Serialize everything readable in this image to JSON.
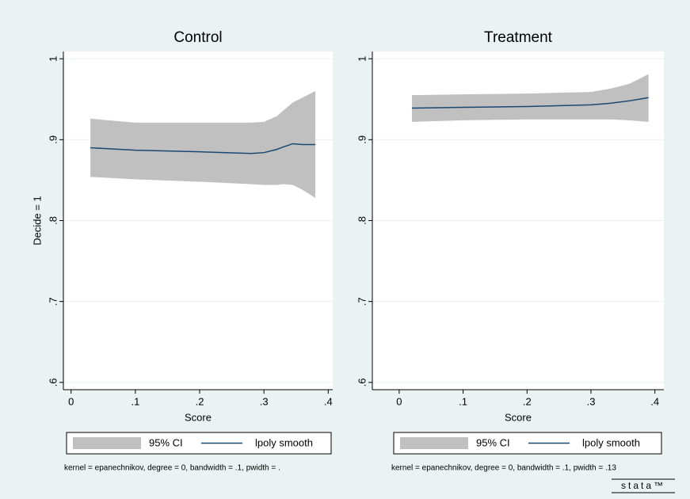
{
  "chart_data": [
    {
      "type": "line",
      "title": "Control",
      "xlabel": "Score",
      "ylabel": "Decide = 1",
      "note": "kernel = epanechnikov, degree = 0, bandwidth = .1, pwidth = .",
      "x": [
        0.03,
        0.1,
        0.2,
        0.28,
        0.3,
        0.32,
        0.33,
        0.345,
        0.36,
        0.38
      ],
      "series": [
        {
          "name": "95% CI",
          "color": "#c0c0c0",
          "upper": [
            0.926,
            0.921,
            0.921,
            0.921,
            0.922,
            0.929,
            0.936,
            0.946,
            0.952,
            0.96
          ],
          "lower": [
            0.854,
            0.851,
            0.848,
            0.845,
            0.844,
            0.844,
            0.845,
            0.844,
            0.838,
            0.828
          ]
        },
        {
          "name": "lpoly smooth",
          "color": "#1a476f",
          "values": [
            0.89,
            0.887,
            0.885,
            0.883,
            0.884,
            0.888,
            0.891,
            0.895,
            0.894,
            0.894
          ]
        }
      ],
      "xlim": [
        -0.012,
        0.407
      ],
      "ylim": [
        0.591,
        1.009
      ],
      "grid": true,
      "xticks": [
        {
          "value": 0,
          "label": "0"
        },
        {
          "value": 0.1,
          "label": ".1"
        },
        {
          "value": 0.2,
          "label": ".2"
        },
        {
          "value": 0.3,
          "label": ".3"
        },
        {
          "value": 0.4,
          "label": ".4"
        }
      ],
      "yticks": [
        {
          "value": 0.6,
          "label": ".6"
        },
        {
          "value": 0.7,
          "label": ".7"
        },
        {
          "value": 0.8,
          "label": ".8"
        },
        {
          "value": 0.9,
          "label": ".9"
        },
        {
          "value": 1,
          "label": "1"
        }
      ]
    },
    {
      "type": "line",
      "title": "Treatment",
      "xlabel": "Score",
      "note": "kernel = epanechnikov, degree = 0, bandwidth = .1, pwidth = .13",
      "x": [
        0.02,
        0.1,
        0.2,
        0.3,
        0.33,
        0.36,
        0.39
      ],
      "series": [
        {
          "name": "95% CI",
          "color": "#c0c0c0",
          "upper": [
            0.955,
            0.956,
            0.957,
            0.959,
            0.963,
            0.969,
            0.981
          ],
          "lower": [
            0.922,
            0.924,
            0.925,
            0.925,
            0.925,
            0.924,
            0.922
          ]
        },
        {
          "name": "lpoly smooth",
          "color": "#1a476f",
          "values": [
            0.939,
            0.94,
            0.941,
            0.943,
            0.945,
            0.948,
            0.952
          ]
        }
      ],
      "xlim": [
        -0.042,
        0.414
      ],
      "ylim": [
        0.591,
        1.009
      ],
      "grid": true,
      "xticks": [
        {
          "value": 0,
          "label": "0"
        },
        {
          "value": 0.1,
          "label": ".1"
        },
        {
          "value": 0.2,
          "label": ".2"
        },
        {
          "value": 0.3,
          "label": ".3"
        },
        {
          "value": 0.4,
          "label": ".4"
        }
      ],
      "yticks": [
        {
          "value": 0.6,
          "label": ".6"
        },
        {
          "value": 0.7,
          "label": ".7"
        },
        {
          "value": 0.8,
          "label": ".8"
        },
        {
          "value": 0.9,
          "label": ".9"
        },
        {
          "value": 1,
          "label": "1"
        }
      ]
    }
  ],
  "logo": "stata™"
}
